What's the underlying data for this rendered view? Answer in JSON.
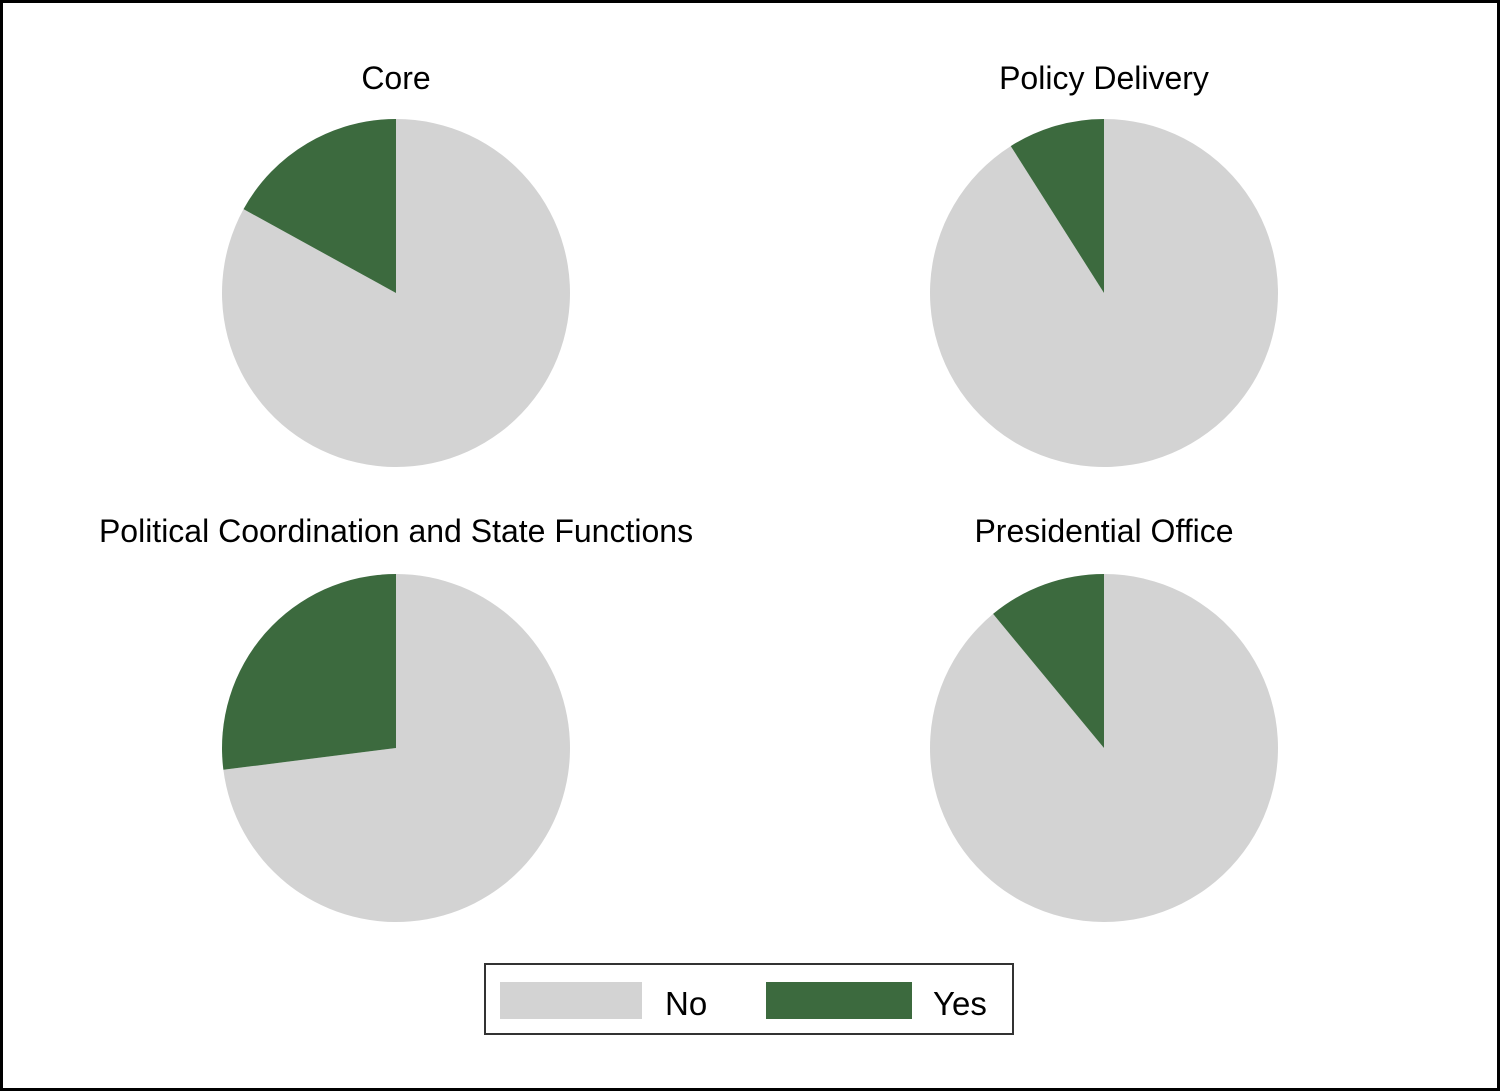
{
  "colors": {
    "no": "#d3d3d3",
    "yes": "#3c6a3e"
  },
  "chart_data": [
    {
      "type": "pie",
      "title": "Core",
      "categories": [
        "No",
        "Yes"
      ],
      "values": [
        83,
        17
      ]
    },
    {
      "type": "pie",
      "title": "Policy Delivery",
      "categories": [
        "No",
        "Yes"
      ],
      "values": [
        91,
        9
      ]
    },
    {
      "type": "pie",
      "title": "Political Coordination and State Functions",
      "categories": [
        "No",
        "Yes"
      ],
      "values": [
        73,
        27
      ]
    },
    {
      "type": "pie",
      "title": "Presidential Office",
      "categories": [
        "No",
        "Yes"
      ],
      "values": [
        89,
        11
      ]
    }
  ],
  "legend": {
    "items": [
      "No",
      "Yes"
    ]
  }
}
